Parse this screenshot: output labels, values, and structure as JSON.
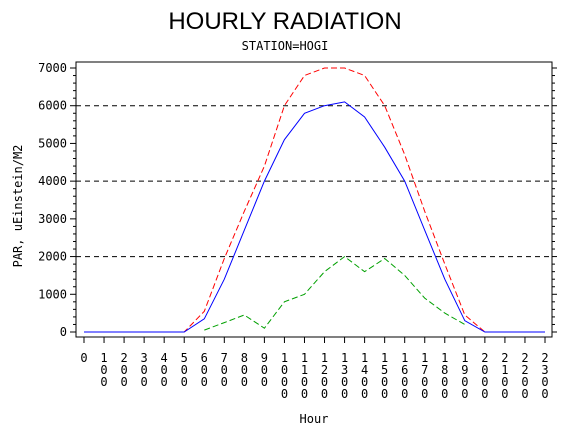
{
  "chart_data": {
    "type": "line",
    "title": "HOURLY RADIATION",
    "subtitle": "STATION=HOGI",
    "xlabel": "Hour",
    "ylabel": "PAR, uEinstein/M2",
    "x": [
      0,
      100,
      200,
      300,
      400,
      500,
      600,
      700,
      800,
      900,
      1000,
      1100,
      1200,
      1300,
      1400,
      1500,
      1600,
      1700,
      1800,
      1900,
      2000,
      2100,
      2200,
      2300
    ],
    "xlim": [
      0,
      2300
    ],
    "ylim": [
      0,
      7000
    ],
    "xticks": [
      "0",
      "100",
      "200",
      "300",
      "400",
      "500",
      "600",
      "700",
      "800",
      "900",
      "1000",
      "1100",
      "1200",
      "1300",
      "1400",
      "1500",
      "1600",
      "1700",
      "1800",
      "1900",
      "2000",
      "2100",
      "2200",
      "2300"
    ],
    "yticks": [
      0,
      1000,
      2000,
      3000,
      4000,
      5000,
      6000,
      7000
    ],
    "reference_lines": [
      2000,
      4000,
      6000
    ],
    "series": [
      {
        "color": "#ff0000",
        "dash": "dashed",
        "values": [
          0,
          0,
          0,
          0,
          0,
          0,
          550,
          1950,
          3200,
          4400,
          6000,
          6800,
          7000,
          7000,
          6800,
          6000,
          4700,
          3200,
          1800,
          450,
          0,
          0,
          0,
          0
        ]
      },
      {
        "color": "#0000ff",
        "dash": "solid",
        "values": [
          0,
          0,
          0,
          0,
          0,
          0,
          350,
          1400,
          2700,
          4000,
          5100,
          5800,
          6000,
          6100,
          5700,
          4900,
          4000,
          2700,
          1400,
          300,
          0,
          0,
          0,
          0
        ]
      },
      {
        "color": "#00a000",
        "dash": "dashed",
        "values": [
          null,
          null,
          null,
          null,
          null,
          null,
          50,
          250,
          450,
          100,
          800,
          1000,
          1600,
          2000,
          1600,
          1950,
          1500,
          900,
          500,
          200,
          null,
          null,
          null,
          null
        ]
      }
    ]
  }
}
